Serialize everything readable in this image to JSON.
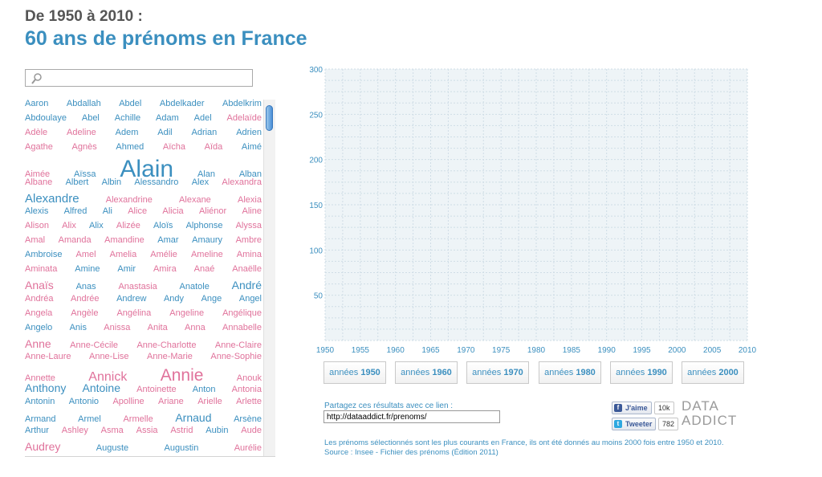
{
  "header": {
    "supertitle": "De 1950 à 2010 :",
    "title": "60 ans de prénoms en France"
  },
  "search": {
    "placeholder": "",
    "icon": "search-icon"
  },
  "colors": {
    "male": "#3b8fbf",
    "female": "#e0729b",
    "chart_bg": "#eef4f7",
    "grid": "#cfdde6"
  },
  "cloud": [
    [
      [
        "Aaron",
        "m",
        11
      ],
      [
        "Abdallah",
        "m",
        11
      ],
      [
        "Abdel",
        "m",
        11
      ],
      [
        "Abdelkader",
        "m",
        11
      ],
      [
        "Abdelkrim",
        "m",
        11
      ]
    ],
    [
      [
        "Abdoulaye",
        "m",
        11
      ],
      [
        "Abel",
        "m",
        11
      ],
      [
        "Achille",
        "m",
        11
      ],
      [
        "Adam",
        "m",
        11
      ],
      [
        "Adel",
        "m",
        11
      ],
      [
        "Adelaïde",
        "f",
        11
      ]
    ],
    [
      [
        "Adèle",
        "f",
        11
      ],
      [
        "Adeline",
        "f",
        11
      ],
      [
        "Adem",
        "m",
        11
      ],
      [
        "Adil",
        "m",
        11
      ],
      [
        "Adrian",
        "m",
        11
      ],
      [
        "Adrien",
        "m",
        11
      ]
    ],
    [
      [
        "Agathe",
        "f",
        11
      ],
      [
        "Agnès",
        "f",
        11
      ],
      [
        "Ahmed",
        "m",
        11
      ],
      [
        "Aïcha",
        "f",
        11
      ],
      [
        "Aïda",
        "f",
        11
      ],
      [
        "Aimé",
        "m",
        11
      ]
    ],
    [
      [
        "Aimée",
        "f",
        11
      ],
      [
        "Aïssa",
        "m",
        11
      ],
      [
        "Alain",
        "m",
        30
      ],
      [
        "Alan",
        "m",
        11
      ],
      [
        "Alban",
        "m",
        11
      ]
    ],
    [
      [
        "Albane",
        "f",
        11
      ],
      [
        "Albert",
        "m",
        11
      ],
      [
        "Albin",
        "m",
        11
      ],
      [
        "Alessandro",
        "m",
        11
      ],
      [
        "Alex",
        "m",
        11
      ],
      [
        "Alexandra",
        "f",
        11
      ]
    ],
    [
      [
        "Alexandre",
        "m",
        15
      ],
      [
        "Alexandrine",
        "f",
        11
      ],
      [
        "Alexane",
        "f",
        11
      ],
      [
        "Alexia",
        "f",
        11
      ]
    ],
    [
      [
        "Alexis",
        "m",
        11
      ],
      [
        "Alfred",
        "m",
        11
      ],
      [
        "Ali",
        "m",
        11
      ],
      [
        "Alice",
        "f",
        11
      ],
      [
        "Alicia",
        "f",
        11
      ],
      [
        "Aliénor",
        "f",
        11
      ],
      [
        "Aline",
        "f",
        11
      ]
    ],
    [
      [
        "Alison",
        "f",
        11
      ],
      [
        "Alix",
        "f",
        11
      ],
      [
        "Alix",
        "m",
        11
      ],
      [
        "Alizée",
        "f",
        11
      ],
      [
        "Aloïs",
        "m",
        11
      ],
      [
        "Alphonse",
        "m",
        11
      ],
      [
        "Alyssa",
        "f",
        11
      ]
    ],
    [
      [
        "Amal",
        "f",
        11
      ],
      [
        "Amanda",
        "f",
        11
      ],
      [
        "Amandine",
        "f",
        11
      ],
      [
        "Amar",
        "m",
        11
      ],
      [
        "Amaury",
        "m",
        11
      ],
      [
        "Ambre",
        "f",
        11
      ]
    ],
    [
      [
        "Ambroise",
        "m",
        11
      ],
      [
        "Amel",
        "f",
        11
      ],
      [
        "Amelia",
        "f",
        11
      ],
      [
        "Amélie",
        "f",
        11
      ],
      [
        "Ameline",
        "f",
        11
      ],
      [
        "Amina",
        "f",
        11
      ]
    ],
    [
      [
        "Aminata",
        "f",
        11
      ],
      [
        "Amine",
        "m",
        11
      ],
      [
        "Amir",
        "m",
        11
      ],
      [
        "Amira",
        "f",
        11
      ],
      [
        "Anaé",
        "f",
        11
      ],
      [
        "Anaëlle",
        "f",
        11
      ]
    ],
    [
      [
        "Anaïs",
        "f",
        14
      ],
      [
        "Anas",
        "m",
        11
      ],
      [
        "Anastasia",
        "f",
        11
      ],
      [
        "Anatole",
        "m",
        11
      ],
      [
        "André",
        "m",
        14
      ]
    ],
    [
      [
        "Andréa",
        "f",
        11
      ],
      [
        "Andrée",
        "f",
        11
      ],
      [
        "Andrew",
        "m",
        11
      ],
      [
        "Andy",
        "m",
        11
      ],
      [
        "Ange",
        "m",
        11
      ],
      [
        "Angel",
        "m",
        11
      ]
    ],
    [
      [
        "Angela",
        "f",
        11
      ],
      [
        "Angèle",
        "f",
        11
      ],
      [
        "Angélina",
        "f",
        11
      ],
      [
        "Angeline",
        "f",
        11
      ],
      [
        "Angélique",
        "f",
        11
      ]
    ],
    [
      [
        "Angelo",
        "m",
        11
      ],
      [
        "Anis",
        "m",
        11
      ],
      [
        "Anissa",
        "f",
        11
      ],
      [
        "Anita",
        "f",
        11
      ],
      [
        "Anna",
        "f",
        11
      ],
      [
        "Annabelle",
        "f",
        11
      ]
    ],
    [
      [
        "Anne",
        "f",
        14
      ],
      [
        "Anne-Cécile",
        "f",
        11
      ],
      [
        "Anne-Charlotte",
        "f",
        11
      ],
      [
        "Anne-Claire",
        "f",
        11
      ]
    ],
    [
      [
        "Anne-Laure",
        "f",
        11
      ],
      [
        "Anne-Lise",
        "f",
        11
      ],
      [
        "Anne-Marie",
        "f",
        11
      ],
      [
        "Anne-Sophie",
        "f",
        11
      ]
    ],
    [
      [
        "Annette",
        "f",
        11
      ],
      [
        "Annick",
        "f",
        16
      ],
      [
        "Annie",
        "f",
        21
      ],
      [
        "Anouk",
        "f",
        11
      ]
    ],
    [
      [
        "Anthony",
        "m",
        14
      ],
      [
        "Antoine",
        "m",
        14
      ],
      [
        "Antoinette",
        "f",
        11
      ],
      [
        "Anton",
        "m",
        11
      ],
      [
        "Antonia",
        "f",
        11
      ]
    ],
    [
      [
        "Antonin",
        "m",
        11
      ],
      [
        "Antonio",
        "m",
        11
      ],
      [
        "Apolline",
        "f",
        11
      ],
      [
        "Ariane",
        "f",
        11
      ],
      [
        "Arielle",
        "f",
        11
      ],
      [
        "Arlette",
        "f",
        11
      ]
    ],
    [
      [
        "Armand",
        "m",
        11
      ],
      [
        "Armel",
        "m",
        11
      ],
      [
        "Armelle",
        "f",
        11
      ],
      [
        "Arnaud",
        "m",
        14
      ],
      [
        "Arsène",
        "m",
        11
      ]
    ],
    [
      [
        "Arthur",
        "m",
        11
      ],
      [
        "Ashley",
        "f",
        11
      ],
      [
        "Asma",
        "f",
        11
      ],
      [
        "Assia",
        "f",
        11
      ],
      [
        "Astrid",
        "f",
        11
      ],
      [
        "Aubin",
        "m",
        11
      ],
      [
        "Aude",
        "f",
        11
      ]
    ],
    [
      [
        "Audrey",
        "f",
        14
      ],
      [
        "Auguste",
        "m",
        11
      ],
      [
        "Augustin",
        "m",
        11
      ],
      [
        "Aurélie",
        "f",
        11
      ]
    ]
  ],
  "chart_data": {
    "type": "line",
    "title": "",
    "xlabel": "",
    "ylabel": "",
    "x_ticks": [
      1950,
      1955,
      1960,
      1965,
      1970,
      1975,
      1980,
      1985,
      1990,
      1995,
      2000,
      2005,
      2010
    ],
    "y_ticks": [
      50,
      100,
      150,
      200,
      250,
      300
    ],
    "xlim": [
      1950,
      2010
    ],
    "ylim": [
      0,
      300
    ],
    "grid": true,
    "series": []
  },
  "decades": [
    {
      "prefix": "années",
      "year": "1950"
    },
    {
      "prefix": "années",
      "year": "1960"
    },
    {
      "prefix": "années",
      "year": "1970"
    },
    {
      "prefix": "années",
      "year": "1980"
    },
    {
      "prefix": "années",
      "year": "1990"
    },
    {
      "prefix": "années",
      "year": "2000"
    }
  ],
  "share": {
    "label": "Partagez ces résultats avec ce lien :",
    "url": "http://dataaddict.fr/prenoms/"
  },
  "social": {
    "like_label": "J'aime",
    "like_count": "10k",
    "tweet_label": "Tweeter",
    "tweet_count": "782"
  },
  "logo": {
    "line1": "DATA",
    "line2": "ADDICT"
  },
  "footer": {
    "note": "Les prénoms sélectionnés sont les plus courants en France, ils ont été donnés au moins 2000 fois entre 1950 et 2010.",
    "source": "Source : Insee - Fichier des prénoms (Édition 2011)"
  }
}
